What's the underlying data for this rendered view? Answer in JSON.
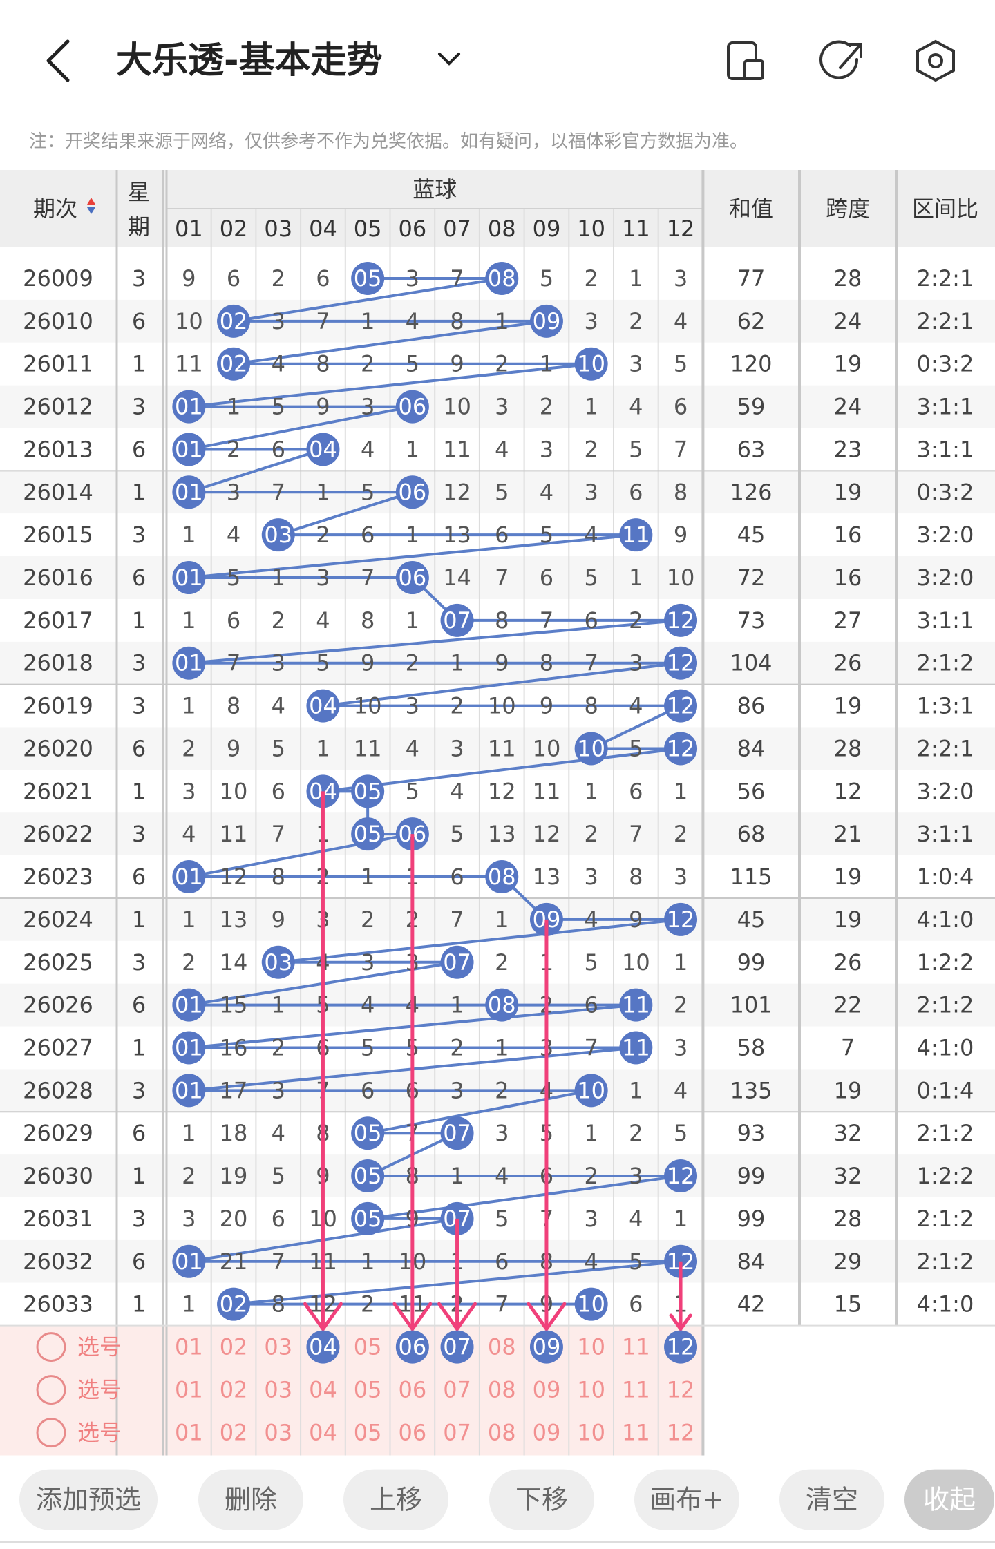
{
  "header": {
    "title": "大乐透-基本走势",
    "note": "注：开奖结果来源于网络，仅供参考不作为兑奖依据。如有疑问，以福体彩官方数据为准。"
  },
  "table": {
    "columns": {
      "period": "期次",
      "weekday": "星期",
      "blue": "蓝球",
      "numbers": [
        "01",
        "02",
        "03",
        "04",
        "05",
        "06",
        "07",
        "08",
        "09",
        "10",
        "11",
        "12"
      ],
      "sum": "和值",
      "span": "跨度",
      "ratio": "区间比"
    },
    "rows": [
      {
        "period": "26009",
        "weekday": "3",
        "cells": [
          "9",
          "6",
          "2",
          "6",
          "05",
          "3",
          "7",
          "08",
          "5",
          "2",
          "1",
          "3"
        ],
        "sum": "77",
        "span": "28",
        "ratio": "2:2:1"
      },
      {
        "period": "26010",
        "weekday": "6",
        "cells": [
          "10",
          "02",
          "3",
          "7",
          "1",
          "4",
          "8",
          "1",
          "09",
          "3",
          "2",
          "4"
        ],
        "sum": "62",
        "span": "24",
        "ratio": "2:2:1"
      },
      {
        "period": "26011",
        "weekday": "1",
        "cells": [
          "11",
          "02",
          "4",
          "8",
          "2",
          "5",
          "9",
          "2",
          "1",
          "10",
          "3",
          "5"
        ],
        "sum": "120",
        "span": "19",
        "ratio": "0:3:2"
      },
      {
        "period": "26012",
        "weekday": "3",
        "cells": [
          "01",
          "1",
          "5",
          "9",
          "3",
          "06",
          "10",
          "3",
          "2",
          "1",
          "4",
          "6"
        ],
        "sum": "59",
        "span": "24",
        "ratio": "3:1:1"
      },
      {
        "period": "26013",
        "weekday": "6",
        "cells": [
          "01",
          "2",
          "6",
          "04",
          "4",
          "1",
          "11",
          "4",
          "3",
          "2",
          "5",
          "7"
        ],
        "sum": "63",
        "span": "23",
        "ratio": "3:1:1"
      },
      {
        "period": "26014",
        "weekday": "1",
        "cells": [
          "01",
          "3",
          "7",
          "1",
          "5",
          "06",
          "12",
          "5",
          "4",
          "3",
          "6",
          "8"
        ],
        "sum": "126",
        "span": "19",
        "ratio": "0:3:2"
      },
      {
        "period": "26015",
        "weekday": "3",
        "cells": [
          "1",
          "4",
          "03",
          "2",
          "6",
          "1",
          "13",
          "6",
          "5",
          "4",
          "11",
          "9"
        ],
        "sum": "45",
        "span": "16",
        "ratio": "3:2:0"
      },
      {
        "period": "26016",
        "weekday": "6",
        "cells": [
          "01",
          "5",
          "1",
          "3",
          "7",
          "06",
          "14",
          "7",
          "6",
          "5",
          "1",
          "10"
        ],
        "sum": "72",
        "span": "16",
        "ratio": "3:2:0"
      },
      {
        "period": "26017",
        "weekday": "1",
        "cells": [
          "1",
          "6",
          "2",
          "4",
          "8",
          "1",
          "07",
          "8",
          "7",
          "6",
          "2",
          "12"
        ],
        "sum": "73",
        "span": "27",
        "ratio": "3:1:1"
      },
      {
        "period": "26018",
        "weekday": "3",
        "cells": [
          "01",
          "7",
          "3",
          "5",
          "9",
          "2",
          "1",
          "9",
          "8",
          "7",
          "3",
          "12"
        ],
        "sum": "104",
        "span": "26",
        "ratio": "2:1:2"
      },
      {
        "period": "26019",
        "weekday": "3",
        "cells": [
          "1",
          "8",
          "4",
          "04",
          "10",
          "3",
          "2",
          "10",
          "9",
          "8",
          "4",
          "12"
        ],
        "sum": "86",
        "span": "19",
        "ratio": "1:3:1"
      },
      {
        "period": "26020",
        "weekday": "6",
        "cells": [
          "2",
          "9",
          "5",
          "1",
          "11",
          "4",
          "3",
          "11",
          "10",
          "10",
          "5",
          "12"
        ],
        "sum": "84",
        "span": "28",
        "ratio": "2:2:1"
      },
      {
        "period": "26021",
        "weekday": "1",
        "cells": [
          "3",
          "10",
          "6",
          "04",
          "05",
          "5",
          "4",
          "12",
          "11",
          "1",
          "6",
          "1"
        ],
        "sum": "56",
        "span": "12",
        "ratio": "3:2:0"
      },
      {
        "period": "26022",
        "weekday": "3",
        "cells": [
          "4",
          "11",
          "7",
          "1",
          "05",
          "06",
          "5",
          "13",
          "12",
          "2",
          "7",
          "2"
        ],
        "sum": "68",
        "span": "21",
        "ratio": "3:1:1"
      },
      {
        "period": "26023",
        "weekday": "6",
        "cells": [
          "01",
          "12",
          "8",
          "2",
          "1",
          "1",
          "6",
          "08",
          "13",
          "3",
          "8",
          "3"
        ],
        "sum": "115",
        "span": "19",
        "ratio": "1:0:4"
      },
      {
        "period": "26024",
        "weekday": "1",
        "cells": [
          "1",
          "13",
          "9",
          "3",
          "2",
          "2",
          "7",
          "1",
          "09",
          "4",
          "9",
          "12"
        ],
        "sum": "45",
        "span": "19",
        "ratio": "4:1:0"
      },
      {
        "period": "26025",
        "weekday": "3",
        "cells": [
          "2",
          "14",
          "03",
          "4",
          "3",
          "3",
          "07",
          "2",
          "1",
          "5",
          "10",
          "1"
        ],
        "sum": "99",
        "span": "26",
        "ratio": "1:2:2"
      },
      {
        "period": "26026",
        "weekday": "6",
        "cells": [
          "01",
          "15",
          "1",
          "5",
          "4",
          "4",
          "1",
          "08",
          "2",
          "6",
          "11",
          "2"
        ],
        "sum": "101",
        "span": "22",
        "ratio": "2:1:2"
      },
      {
        "period": "26027",
        "weekday": "1",
        "cells": [
          "01",
          "16",
          "2",
          "6",
          "5",
          "5",
          "2",
          "1",
          "3",
          "7",
          "11",
          "3"
        ],
        "sum": "58",
        "span": "7",
        "ratio": "4:1:0"
      },
      {
        "period": "26028",
        "weekday": "3",
        "cells": [
          "01",
          "17",
          "3",
          "7",
          "6",
          "6",
          "3",
          "2",
          "4",
          "10",
          "1",
          "4"
        ],
        "sum": "135",
        "span": "19",
        "ratio": "0:1:4"
      },
      {
        "period": "26029",
        "weekday": "6",
        "cells": [
          "1",
          "18",
          "4",
          "8",
          "05",
          "7",
          "07",
          "3",
          "5",
          "1",
          "2",
          "5"
        ],
        "sum": "93",
        "span": "32",
        "ratio": "2:1:2"
      },
      {
        "period": "26030",
        "weekday": "1",
        "cells": [
          "2",
          "19",
          "5",
          "9",
          "05",
          "8",
          "1",
          "4",
          "6",
          "2",
          "3",
          "12"
        ],
        "sum": "99",
        "span": "32",
        "ratio": "1:2:2"
      },
      {
        "period": "26031",
        "weekday": "3",
        "cells": [
          "3",
          "20",
          "6",
          "10",
          "05",
          "9",
          "07",
          "5",
          "7",
          "3",
          "4",
          "1"
        ],
        "sum": "99",
        "span": "28",
        "ratio": "2:1:2"
      },
      {
        "period": "26032",
        "weekday": "6",
        "cells": [
          "01",
          "21",
          "7",
          "11",
          "1",
          "10",
          "1",
          "6",
          "8",
          "4",
          "5",
          "12"
        ],
        "sum": "84",
        "span": "29",
        "ratio": "2:1:2"
      },
      {
        "period": "26033",
        "weekday": "1",
        "cells": [
          "1",
          "02",
          "8",
          "12",
          "2",
          "11",
          "2",
          "7",
          "9",
          "10",
          "6",
          "1"
        ],
        "sum": "42",
        "span": "15",
        "ratio": "4:1:0"
      }
    ]
  },
  "select_rows": [
    {
      "label": "选号",
      "numbers": [
        {
          "text": "01",
          "selected": false
        },
        {
          "text": "02",
          "selected": false
        },
        {
          "text": "03",
          "selected": false
        },
        {
          "text": "04",
          "selected": true
        },
        {
          "text": "05",
          "selected": false
        },
        {
          "text": "06",
          "selected": true
        },
        {
          "text": "07",
          "selected": true
        },
        {
          "text": "08",
          "selected": false
        },
        {
          "text": "09",
          "selected": true
        },
        {
          "text": "10",
          "selected": false
        },
        {
          "text": "11",
          "selected": false
        },
        {
          "text": "12",
          "selected": true
        }
      ]
    },
    {
      "label": "选号",
      "numbers": [
        {
          "text": "01",
          "selected": false
        },
        {
          "text": "02",
          "selected": false
        },
        {
          "text": "03",
          "selected": false
        },
        {
          "text": "04",
          "selected": false
        },
        {
          "text": "05",
          "selected": false
        },
        {
          "text": "06",
          "selected": false
        },
        {
          "text": "07",
          "selected": false
        },
        {
          "text": "08",
          "selected": false
        },
        {
          "text": "09",
          "selected": false
        },
        {
          "text": "10",
          "selected": false
        },
        {
          "text": "11",
          "selected": false
        },
        {
          "text": "12",
          "selected": false
        }
      ]
    },
    {
      "label": "选号",
      "numbers": [
        {
          "text": "01",
          "selected": false
        },
        {
          "text": "02",
          "selected": false
        },
        {
          "text": "03",
          "selected": false
        },
        {
          "text": "04",
          "selected": false
        },
        {
          "text": "05",
          "selected": false
        },
        {
          "text": "06",
          "selected": false
        },
        {
          "text": "07",
          "selected": false
        },
        {
          "text": "08",
          "selected": false
        },
        {
          "text": "09",
          "selected": false
        },
        {
          "text": "10",
          "selected": false
        },
        {
          "text": "11",
          "selected": false
        },
        {
          "text": "12",
          "selected": false
        }
      ]
    }
  ],
  "buttons": [
    "添加预选",
    "删除",
    "上移",
    "下移",
    "画布+",
    "清空",
    "收起"
  ]
}
